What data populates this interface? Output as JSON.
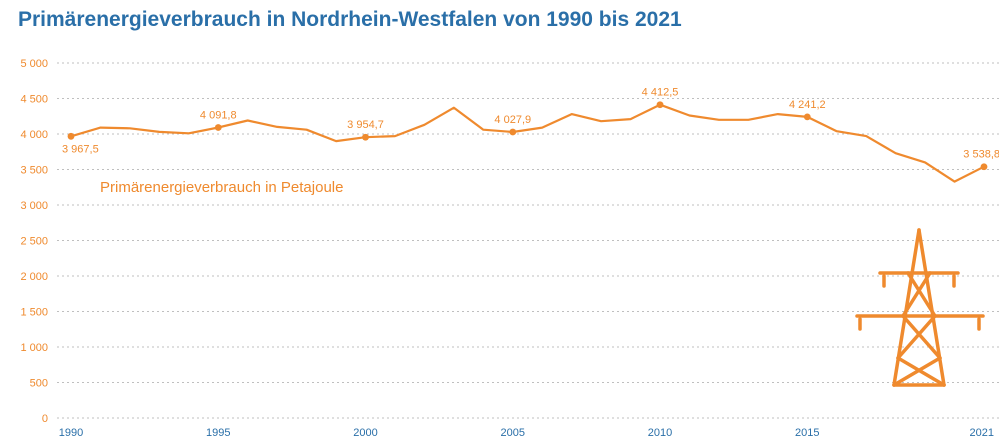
{
  "header": {
    "title": "Primärenergieverbrauch in Nordrhein-Westfalen von 1990 bis 2021"
  },
  "colors": {
    "accent": "#ef8a2e",
    "title": "#2a6fa8",
    "grid": "#bfbfbf"
  },
  "icon": "power-pylon-icon",
  "chart_data": {
    "type": "line",
    "title": "Primärenergieverbrauch in Nordrhein-Westfalen von 1990 bis 2021",
    "xlabel": "",
    "ylabel": "",
    "ylim": [
      0,
      5000
    ],
    "xlim": [
      1990,
      2021
    ],
    "grid": true,
    "yticks": [
      {
        "value": 0,
        "label": "0"
      },
      {
        "value": 500,
        "label": "500"
      },
      {
        "value": 1000,
        "label": "1 000"
      },
      {
        "value": 1500,
        "label": "1 500"
      },
      {
        "value": 2000,
        "label": "2 000"
      },
      {
        "value": 2500,
        "label": "2 500"
      },
      {
        "value": 3000,
        "label": "3 000"
      },
      {
        "value": 3500,
        "label": "3 500"
      },
      {
        "value": 4000,
        "label": "4 000"
      },
      {
        "value": 4500,
        "label": "4 500"
      },
      {
        "value": 5000,
        "label": "5 000"
      }
    ],
    "xticks": [
      {
        "value": 1990,
        "label": "1990"
      },
      {
        "value": 1995,
        "label": "1995"
      },
      {
        "value": 2000,
        "label": "2000"
      },
      {
        "value": 2005,
        "label": "2005"
      },
      {
        "value": 2010,
        "label": "2010"
      },
      {
        "value": 2015,
        "label": "2015"
      },
      {
        "value": 2021,
        "label": "2021"
      }
    ],
    "series": [
      {
        "name": "Primärenergieverbrauch in Petajoule",
        "x": [
          1990,
          1991,
          1992,
          1993,
          1994,
          1995,
          1996,
          1997,
          1998,
          1999,
          2000,
          2001,
          2002,
          2003,
          2004,
          2005,
          2006,
          2007,
          2008,
          2009,
          2010,
          2011,
          2012,
          2013,
          2014,
          2015,
          2016,
          2017,
          2018,
          2019,
          2020,
          2021
        ],
        "values": [
          3967.5,
          4090,
          4080,
          4030,
          4010,
          4091.8,
          4190,
          4100,
          4060,
          3900,
          3954.7,
          3970,
          4130,
          4370,
          4060,
          4027.9,
          4090,
          4280,
          4180,
          4210,
          4412.5,
          4260,
          4200,
          4200,
          4280,
          4241.2,
          4040,
          3970,
          3730,
          3600,
          3330,
          3538.8
        ]
      }
    ],
    "annotations": [
      {
        "x": 1990,
        "y": 3967.5,
        "label": "3 967,5",
        "pos": "below"
      },
      {
        "x": 1995,
        "y": 4091.8,
        "label": "4 091,8",
        "pos": "above"
      },
      {
        "x": 2000,
        "y": 3954.7,
        "label": "3 954,7",
        "pos": "above"
      },
      {
        "x": 2005,
        "y": 4027.9,
        "label": "4 027,9",
        "pos": "above"
      },
      {
        "x": 2010,
        "y": 4412.5,
        "label": "4 412,5",
        "pos": "above"
      },
      {
        "x": 2015,
        "y": 4241.2,
        "label": "4 241,2",
        "pos": "above"
      },
      {
        "x": 2021,
        "y": 3538.8,
        "label": "3 538,8",
        "pos": "above"
      }
    ]
  }
}
